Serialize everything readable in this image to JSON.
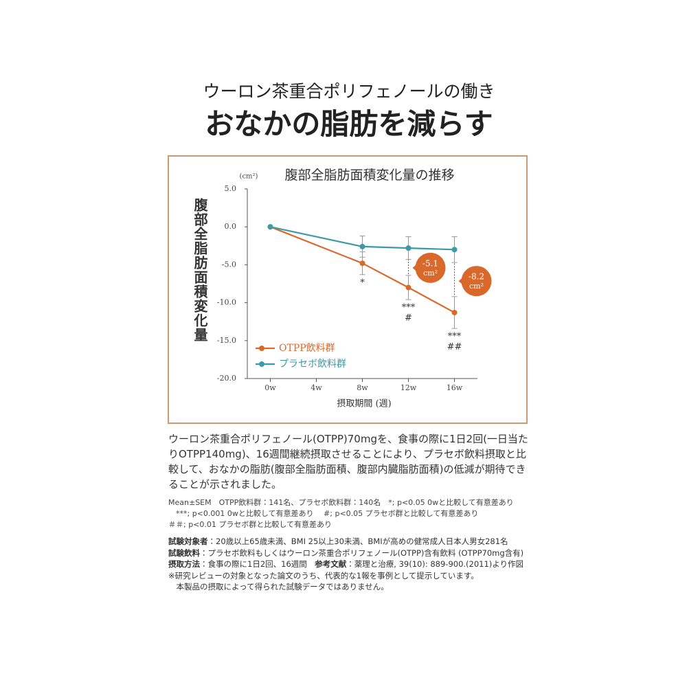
{
  "header": {
    "subtitle": "ウーロン茶重合ポリフェノールの働き",
    "title": "おなかの脂肪を減らす"
  },
  "chart_data": {
    "type": "line",
    "title": "腹部全脂肪面積変化量の推移",
    "y_unit": "(cm²)",
    "y_label": "腹部全脂肪面積変化量",
    "x_label": "摂取期間 (週)",
    "x": [
      0,
      8,
      12,
      16
    ],
    "xlim": [
      -2,
      18
    ],
    "xticks": [
      {
        "value": 0,
        "label": "0w"
      },
      {
        "value": 4,
        "label": "4w"
      },
      {
        "value": 8,
        "label": "8w"
      },
      {
        "value": 12,
        "label": "12w"
      },
      {
        "value": 16,
        "label": "16w"
      }
    ],
    "ylim": [
      -20,
      5
    ],
    "yticks": [
      {
        "value": 5,
        "label": "5.0"
      },
      {
        "value": 0,
        "label": "0.0"
      },
      {
        "value": -5,
        "label": "-5.0"
      },
      {
        "value": -10,
        "label": "-10.0"
      },
      {
        "value": -15,
        "label": "-15.0"
      },
      {
        "value": -20,
        "label": "-20.0"
      }
    ],
    "series": [
      {
        "name": "OTPP飲料群",
        "color": "#d9692b",
        "values": [
          0,
          -4.8,
          -8.0,
          -11.3
        ],
        "errors": [
          0,
          1.5,
          1.6,
          2.1
        ],
        "significance": [
          null,
          [
            "*"
          ],
          [
            "***",
            "#"
          ],
          [
            "***",
            "##"
          ]
        ]
      },
      {
        "name": "プラセボ飲料群",
        "color": "#3a9aa6",
        "values": [
          0,
          -2.6,
          -2.8,
          -3.0
        ],
        "errors": [
          0,
          1.4,
          1.5,
          1.7
        ]
      }
    ],
    "callouts": [
      {
        "label": "-5.1",
        "unit": "cm²"
      },
      {
        "label": "-8.2",
        "unit": "cm²"
      }
    ],
    "legend": "lower-left",
    "frame_color": "#c99a74"
  },
  "paragraph": "ウーロン茶重合ポリフェノール(OTPP)70mgを、食事の際に1日2回(一日当たりOTPP140mg)、16週間継続摂取させることにより、プラセボ飲料摂取と比較して、おなかの脂肪(腹部全脂肪面積、腹部内臓脂肪面積)の低減が期待できることが示されました。",
  "notes": [
    "Mean±SEM　OTPP飲料群：141名、プラセボ飲料群：140名　*; p<0.05 0wと比較して有意差あり",
    "　***; p<0.001 0wと比較して有意差あり　 #; p<0.05 プラセボ群と比較して有意差あり",
    "＃＃; p<0.01 プラセボ群と比較して有意差あり"
  ],
  "details": [
    [
      {
        "text": "試験対象者",
        "bold": true
      },
      {
        "text": "：20歳以上65歳未満、BMI 25以上30未満、BMIが高めの健常成人日本人男女281名",
        "bold": false
      }
    ],
    [
      {
        "text": "試験飲料",
        "bold": true
      },
      {
        "text": "：プラセボ飲料もしくはウーロン茶重合ポリフェノール(OTPP)含有飲料 (OTPP70mg含有)",
        "bold": false
      }
    ],
    [
      {
        "text": "摂取方法",
        "bold": true
      },
      {
        "text": "：食事の際に1日2回、16週間　",
        "bold": false
      },
      {
        "text": "参考文献",
        "bold": true
      },
      {
        "text": "：薬理と治療, 39(10): 889-900.(2011)より作図",
        "bold": false
      }
    ],
    [
      {
        "text": "※研究レビューの対象となった論文のうち、代表的な1報を事例として提示しています。",
        "bold": false
      }
    ],
    [
      {
        "text": "　本製品の摂取によって得られた試験データではありません。",
        "bold": false
      }
    ]
  ]
}
